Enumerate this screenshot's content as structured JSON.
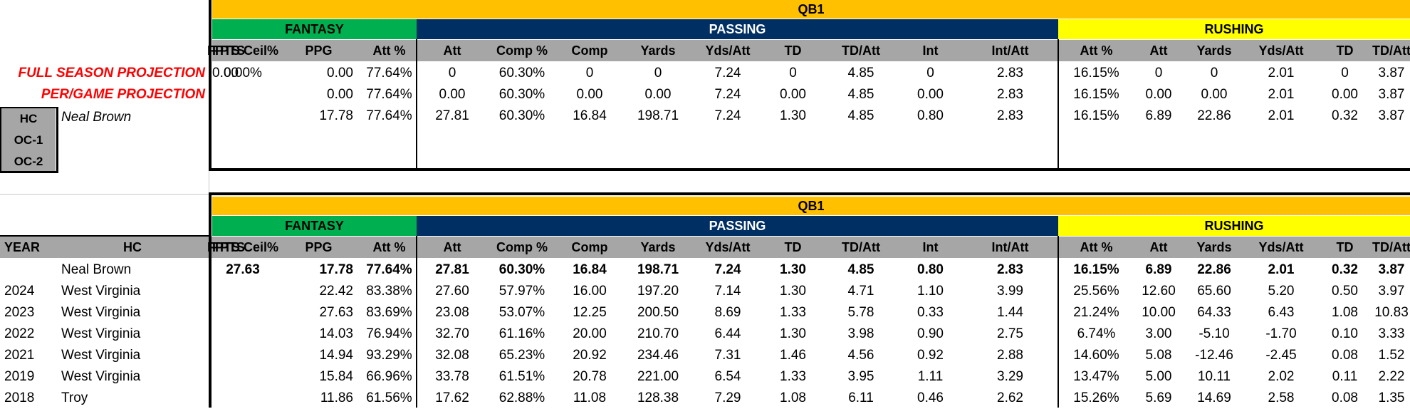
{
  "sections": {
    "qb_label": "QB1",
    "fantasy_label": "FANTASY",
    "passing_label": "PASSING",
    "rushing_label": "RUSHING"
  },
  "columns": [
    "FPTS",
    "FPTS Ceil%",
    "PPG",
    "Att %",
    "Att",
    "Comp %",
    "Comp",
    "Yards",
    "Yds/Att",
    "TD",
    "TD/Att",
    "Int",
    "Int/Att",
    "Att %",
    "Att",
    "Yards",
    "Yds/Att",
    "TD",
    "TD/Att"
  ],
  "projection": {
    "full_season_label": "FULL SEASON PROJECTION",
    "per_game_label": "PER/GAME PROJECTION",
    "rows": [
      [
        "0.00",
        "0.00%",
        "0.00",
        "77.64%",
        "0",
        "60.30%",
        "0",
        "0",
        "7.24",
        "0",
        "4.85",
        "0",
        "2.83",
        "16.15%",
        "0",
        "0",
        "2.01",
        "0",
        "3.87"
      ],
      [
        "",
        "",
        "0.00",
        "77.64%",
        "0.00",
        "60.30%",
        "0.00",
        "0.00",
        "7.24",
        "0.00",
        "4.85",
        "0.00",
        "2.83",
        "16.15%",
        "0.00",
        "0.00",
        "2.01",
        "0.00",
        "3.87"
      ],
      [
        "",
        "",
        "17.78",
        "77.64%",
        "27.81",
        "60.30%",
        "16.84",
        "198.71",
        "7.24",
        "1.30",
        "4.85",
        "0.80",
        "2.83",
        "16.15%",
        "6.89",
        "22.86",
        "2.01",
        "0.32",
        "3.87"
      ]
    ]
  },
  "coaches": {
    "hc_label": "HC",
    "oc1_label": "OC-1",
    "oc2_label": "OC-2",
    "hc_name": "Neal Brown"
  },
  "history": {
    "year_header": "YEAR",
    "hc_header": "HC",
    "rows": [
      {
        "year": "",
        "team": "Neal Brown",
        "values": [
          "",
          "27.63",
          "17.78",
          "77.64%",
          "27.81",
          "60.30%",
          "16.84",
          "198.71",
          "7.24",
          "1.30",
          "4.85",
          "0.80",
          "2.83",
          "16.15%",
          "6.89",
          "22.86",
          "2.01",
          "0.32",
          "3.87"
        ]
      },
      {
        "year": "2024",
        "team": "West Virginia",
        "values": [
          "",
          "",
          "22.42",
          "83.38%",
          "27.60",
          "57.97%",
          "16.00",
          "197.20",
          "7.14",
          "1.30",
          "4.71",
          "1.10",
          "3.99",
          "25.56%",
          "12.60",
          "65.60",
          "5.20",
          "0.50",
          "3.97"
        ]
      },
      {
        "year": "2023",
        "team": "West Virginia",
        "values": [
          "",
          "",
          "27.63",
          "83.69%",
          "23.08",
          "53.07%",
          "12.25",
          "200.50",
          "8.69",
          "1.33",
          "5.78",
          "0.33",
          "1.44",
          "21.24%",
          "10.00",
          "64.33",
          "6.43",
          "1.08",
          "10.83"
        ]
      },
      {
        "year": "2022",
        "team": "West Virginia",
        "values": [
          "",
          "",
          "14.03",
          "76.94%",
          "32.70",
          "61.16%",
          "20.00",
          "210.70",
          "6.44",
          "1.30",
          "3.98",
          "0.90",
          "2.75",
          "6.74%",
          "3.00",
          "-5.10",
          "-1.70",
          "0.10",
          "3.33"
        ]
      },
      {
        "year": "2021",
        "team": "West Virginia",
        "values": [
          "",
          "",
          "14.94",
          "93.29%",
          "32.08",
          "65.23%",
          "20.92",
          "234.46",
          "7.31",
          "1.46",
          "4.56",
          "0.92",
          "2.88",
          "14.60%",
          "5.08",
          "-12.46",
          "-2.45",
          "0.08",
          "1.52"
        ]
      },
      {
        "year": "2019",
        "team": "West Virginia",
        "values": [
          "",
          "",
          "15.84",
          "66.96%",
          "33.78",
          "61.51%",
          "20.78",
          "221.00",
          "6.54",
          "1.33",
          "3.95",
          "1.11",
          "3.29",
          "13.47%",
          "5.00",
          "10.11",
          "2.02",
          "0.11",
          "2.22"
        ]
      },
      {
        "year": "2018",
        "team": "Troy",
        "values": [
          "",
          "",
          "11.86",
          "61.56%",
          "17.62",
          "62.88%",
          "11.08",
          "128.38",
          "7.29",
          "1.08",
          "6.11",
          "0.46",
          "2.62",
          "15.26%",
          "5.69",
          "14.69",
          "2.58",
          "0.08",
          "1.35"
        ]
      }
    ]
  }
}
